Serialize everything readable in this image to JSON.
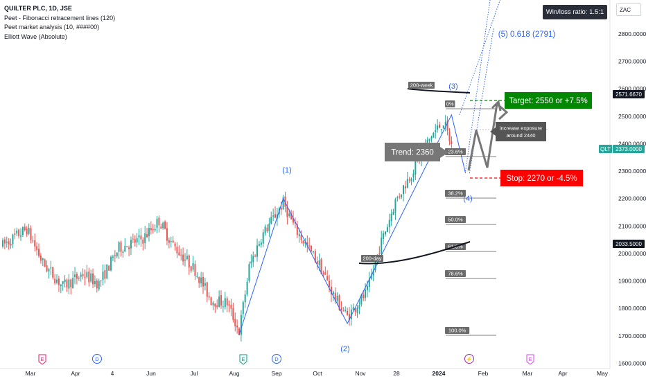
{
  "legend": {
    "title": "QUILTER PLC, 1D, JSE",
    "line1": "Peet - Fibonacci retracement lines (120)",
    "line2": "Peet market analysis (10, ####00)",
    "line3": "Elliott Wave (Absolute)"
  },
  "winloss_text": "Win/loss ratio: 1.5:1",
  "currency_label": "ZAC",
  "colors": {
    "up": "#26a69a",
    "down": "#ef5350",
    "wave": "#2962ff",
    "ma": "#131722",
    "target": "#008800",
    "stop": "#ff0000",
    "label_gray": "#777777",
    "axis_text": "#131722"
  },
  "chart_data": {
    "type": "candlestick",
    "symbol": "QLT",
    "timeframe": "1D",
    "exchange": "JSE",
    "x_axis_labels": [
      "Mar",
      "Apr",
      "4",
      "Jun",
      "Jul",
      "Aug",
      "Sep",
      "Oct",
      "Nov",
      "28",
      "2024",
      "Feb",
      "Mar",
      "Apr",
      "May"
    ],
    "y_ticks": [
      "2800.0000",
      "2700.0000",
      "2600.0000",
      "2500.0000",
      "2400.0000",
      "2300.0000",
      "2200.0000",
      "2100.0000",
      "2000.0000",
      "1900.0000",
      "1800.0000",
      "1700.0000",
      "1600.0000"
    ],
    "y_range": [
      1600,
      2890
    ],
    "price_labels": [
      {
        "text": "2571.6670",
        "value": 2571.667,
        "style": "dark"
      },
      {
        "text": "QLT",
        "value": 2373.0,
        "style": "green_tag"
      },
      {
        "text": "2373.0000",
        "value": 2373.0,
        "style": "green"
      },
      {
        "text": "2033.5000",
        "value": 2033.5,
        "style": "dark"
      }
    ],
    "candles": {
      "count": 225,
      "start_price": 2040,
      "last_price": 2373
    },
    "elliott_wave_points": [
      {
        "label": "(1)",
        "value": 2200
      },
      {
        "label": "(2)",
        "value": 1745
      },
      {
        "label": "(3)",
        "value": 2505
      },
      {
        "label": "(4)",
        "value": "2293"
      },
      {
        "label": "(5) 0.618 (2791)",
        "value": 2791
      }
    ],
    "fib_levels": [
      "0%",
      "23.6%",
      "38.2%",
      "50.0%",
      "61.8%",
      "78.6%",
      "100.0%"
    ],
    "moving_averages": [
      {
        "name": "200-day",
        "value": 2033.5
      },
      {
        "name": "200-week",
        "value": 2571.667
      }
    ],
    "annotations": {
      "trend": "Trend: 2360",
      "target": "Target: 2550 or +7.5%",
      "stop": "Stop: 2270 or -4.5%",
      "increase_line1": "increase exposure",
      "increase_line2": "around 2440"
    },
    "event_markers": [
      "E",
      "D",
      "E",
      "D",
      "⚡",
      "E"
    ]
  }
}
